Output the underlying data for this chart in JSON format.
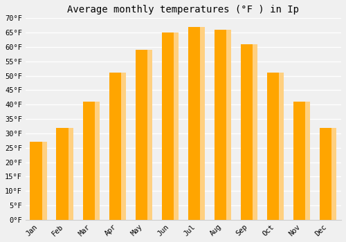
{
  "title": "Average monthly temperatures (°F ) in Ip",
  "months": [
    "Jan",
    "Feb",
    "Mar",
    "Apr",
    "May",
    "Jun",
    "Jul",
    "Aug",
    "Sep",
    "Oct",
    "Nov",
    "Dec"
  ],
  "values": [
    27,
    32,
    41,
    51,
    59,
    65,
    67,
    66,
    61,
    51,
    41,
    32
  ],
  "bar_color_left": "#FFA500",
  "bar_color_right": "#FFD080",
  "ylim": [
    0,
    70
  ],
  "yticks": [
    0,
    5,
    10,
    15,
    20,
    25,
    30,
    35,
    40,
    45,
    50,
    55,
    60,
    65,
    70
  ],
  "background_color": "#f0f0f0",
  "grid_color": "#ffffff",
  "title_fontsize": 10,
  "tick_fontsize": 7.5,
  "bar_width": 0.65
}
